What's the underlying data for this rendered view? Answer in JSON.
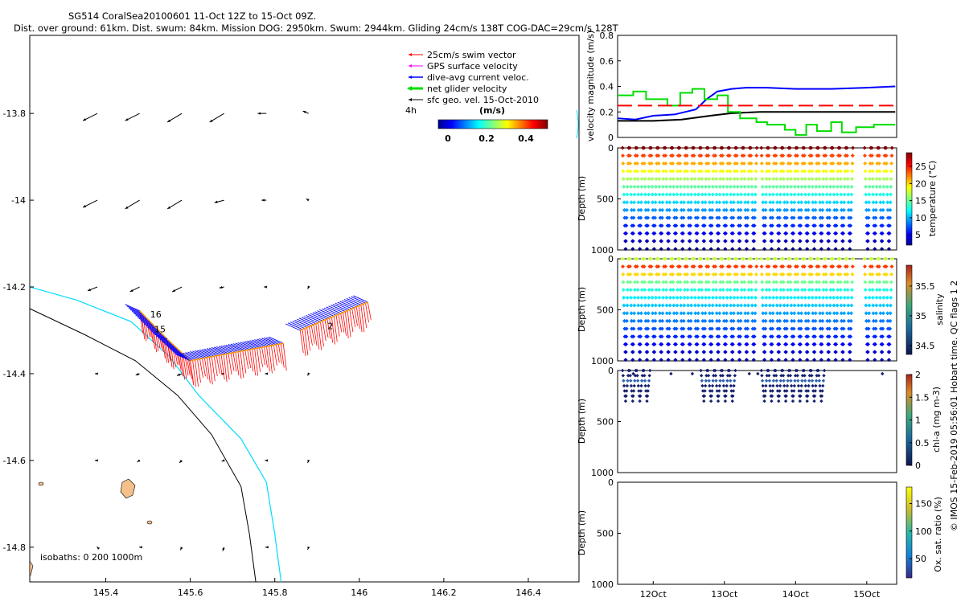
{
  "header": {
    "line1": "SG514 CoralSea20100601 11-Oct 12Z to 15-Oct 09Z.",
    "line2": "Dist. over ground: 61km. Dist. swum: 84km. Mission DOG: 2950km. Swum: 2944km. Gliding 24cm/s 138T COG-DAC=29cm/s 128T"
  },
  "side_note": "© IMOS 15-Feb-2019 05:56:01 Hobart time. QC flags 1  2",
  "colors": {
    "swim": "#ff0000",
    "gps": "#ff00ff",
    "dac": "#0000ff",
    "net": "#00dd00",
    "geo": "#000000",
    "coast": "#00dcff",
    "isobath": "#000000",
    "island": "#f5c08a"
  },
  "chart_data": [
    {
      "type": "scatter",
      "name": "map",
      "xlabel": "",
      "ylabel": "",
      "xlim": [
        145.22,
        146.52
      ],
      "ylim": [
        -14.88,
        -13.62
      ],
      "xticks": [
        "145.4",
        "145.6",
        "145.8",
        "146",
        "146.2",
        "146.4"
      ],
      "xtick_values": [
        145.4,
        145.6,
        145.8,
        146.0,
        146.2,
        146.4
      ],
      "yticks": [
        "-13.8",
        "-14",
        "-14.2",
        "-14.4",
        "-14.6",
        "-14.8"
      ],
      "ytick_values": [
        -13.8,
        -14.0,
        -14.2,
        -14.4,
        -14.6,
        -14.8
      ],
      "legend": {
        "position": "top-right",
        "entries": [
          "25cm/s swim vector",
          "GPS surface velocity",
          "dive-avg current veloc.",
          "net glider velocity",
          "sfc geo. vel. 15-Oct-2010"
        ]
      },
      "colorbar": {
        "label": "(m/s)",
        "ticks": [
          "0",
          "0.2",
          "0.4"
        ],
        "range": [
          0,
          0.5
        ]
      },
      "time_label": "4h",
      "isobath_note": "isobaths: 0    200   1000m",
      "track_labels": [
        {
          "text": "16",
          "lon": 145.505,
          "lat": -14.27
        },
        {
          "text": "15",
          "lon": 145.515,
          "lat": -14.305
        },
        {
          "text": "2",
          "lon": 145.925,
          "lat": -14.297
        }
      ],
      "track_segments": [
        {
          "from": [
            145.48,
            -14.255
          ],
          "to": [
            145.545,
            -14.32
          ]
        },
        {
          "from": [
            145.545,
            -14.32
          ],
          "to": [
            145.6,
            -14.37
          ]
        },
        {
          "from": [
            145.6,
            -14.37
          ],
          "to": [
            145.82,
            -14.33
          ]
        },
        {
          "from": [
            145.86,
            -14.3
          ],
          "to": [
            146.02,
            -14.235
          ]
        }
      ],
      "geo_vectors": [
        {
          "lon": 145.38,
          "lat": -13.8,
          "u": -0.3,
          "v": -0.15
        },
        {
          "lon": 145.48,
          "lat": -13.8,
          "u": -0.3,
          "v": -0.15
        },
        {
          "lon": 145.58,
          "lat": -13.8,
          "u": -0.3,
          "v": -0.18
        },
        {
          "lon": 145.68,
          "lat": -13.8,
          "u": -0.3,
          "v": -0.18
        },
        {
          "lon": 145.78,
          "lat": -13.8,
          "u": -0.18,
          "v": 0.0
        },
        {
          "lon": 145.88,
          "lat": -13.8,
          "u": -0.12,
          "v": 0.05
        },
        {
          "lon": 145.38,
          "lat": -14.0,
          "u": -0.3,
          "v": -0.15
        },
        {
          "lon": 145.48,
          "lat": -14.0,
          "u": -0.3,
          "v": -0.18
        },
        {
          "lon": 145.58,
          "lat": -14.0,
          "u": -0.3,
          "v": -0.18
        },
        {
          "lon": 145.68,
          "lat": -14.0,
          "u": -0.2,
          "v": -0.05
        },
        {
          "lon": 145.78,
          "lat": -14.0,
          "u": -0.1,
          "v": 0.0
        },
        {
          "lon": 145.88,
          "lat": -14.0,
          "u": -0.05,
          "v": 0.03
        },
        {
          "lon": 145.38,
          "lat": -14.2,
          "u": -0.2,
          "v": -0.08
        },
        {
          "lon": 145.48,
          "lat": -14.2,
          "u": -0.2,
          "v": -0.1
        },
        {
          "lon": 145.58,
          "lat": -14.2,
          "u": -0.2,
          "v": -0.1
        },
        {
          "lon": 145.68,
          "lat": -14.2,
          "u": -0.1,
          "v": -0.02
        },
        {
          "lon": 145.78,
          "lat": -14.2,
          "u": -0.05,
          "v": 0.0
        },
        {
          "lon": 145.88,
          "lat": -14.2,
          "u": -0.02,
          "v": -0.04
        },
        {
          "lon": 145.38,
          "lat": -14.4,
          "u": -0.05,
          "v": 0.0
        },
        {
          "lon": 145.48,
          "lat": -14.4,
          "u": -0.08,
          "v": -0.03
        },
        {
          "lon": 145.58,
          "lat": -14.4,
          "u": -0.1,
          "v": -0.04
        },
        {
          "lon": 145.68,
          "lat": -14.4,
          "u": -0.06,
          "v": 0.0
        },
        {
          "lon": 145.78,
          "lat": -14.4,
          "u": -0.03,
          "v": 0.0
        },
        {
          "lon": 145.88,
          "lat": -14.4,
          "u": -0.02,
          "v": -0.04
        },
        {
          "lon": 145.38,
          "lat": -14.6,
          "u": -0.05,
          "v": 0.0
        },
        {
          "lon": 145.48,
          "lat": -14.6,
          "u": -0.05,
          "v": -0.03
        },
        {
          "lon": 145.58,
          "lat": -14.6,
          "u": -0.05,
          "v": -0.05
        },
        {
          "lon": 145.68,
          "lat": -14.6,
          "u": -0.05,
          "v": -0.02
        },
        {
          "lon": 145.78,
          "lat": -14.6,
          "u": -0.03,
          "v": 0.0
        },
        {
          "lon": 145.88,
          "lat": -14.6,
          "u": -0.02,
          "v": -0.05
        },
        {
          "lon": 145.38,
          "lat": -14.8,
          "u": -0.01,
          "v": 0.01
        },
        {
          "lon": 145.48,
          "lat": -14.8,
          "u": -0.01,
          "v": 0.0
        },
        {
          "lon": 145.58,
          "lat": -14.8,
          "u": -0.03,
          "v": -0.06
        },
        {
          "lon": 145.68,
          "lat": -14.8,
          "u": -0.03,
          "v": -0.08
        },
        {
          "lon": 145.78,
          "lat": -14.8,
          "u": -0.02,
          "v": 0.0
        },
        {
          "lon": 145.88,
          "lat": -14.8,
          "u": -0.02,
          "v": -0.05
        }
      ],
      "coast_line": [
        [
          145.22,
          -14.2
        ],
        [
          145.33,
          -14.23
        ],
        [
          145.46,
          -14.28
        ],
        [
          145.55,
          -14.36
        ],
        [
          145.62,
          -14.45
        ],
        [
          145.72,
          -14.55
        ],
        [
          145.78,
          -14.65
        ],
        [
          145.8,
          -14.77
        ],
        [
          145.815,
          -14.88
        ]
      ],
      "isobath_line": [
        [
          145.22,
          -14.25
        ],
        [
          145.35,
          -14.31
        ],
        [
          145.47,
          -14.37
        ],
        [
          145.57,
          -14.45
        ],
        [
          145.65,
          -14.54
        ],
        [
          145.72,
          -14.66
        ],
        [
          145.74,
          -14.77
        ],
        [
          145.755,
          -14.88
        ]
      ]
    },
    {
      "type": "line",
      "name": "velocity",
      "ylabel": "velocity magnitude (m/s)",
      "ylim": [
        0,
        0.8
      ],
      "yticks": [
        "0",
        "0.2",
        "0.4",
        "0.6",
        "0.8"
      ],
      "xlim": [
        11.5,
        15.42
      ],
      "series": [
        {
          "color": "#0000ff",
          "x": [
            11.5,
            11.75,
            12.0,
            12.3,
            12.6,
            12.75,
            12.9,
            13.1,
            13.3,
            13.6,
            14.0,
            14.5,
            15.0,
            15.4
          ],
          "y": [
            0.15,
            0.14,
            0.17,
            0.18,
            0.22,
            0.3,
            0.36,
            0.38,
            0.39,
            0.39,
            0.38,
            0.38,
            0.39,
            0.4
          ]
        },
        {
          "color": "#000000",
          "x": [
            11.5,
            12.0,
            12.4,
            12.8,
            13.1,
            13.5,
            14.0,
            14.5,
            15.0,
            15.4
          ],
          "y": [
            0.13,
            0.13,
            0.14,
            0.17,
            0.19,
            0.2,
            0.2,
            0.2,
            0.2,
            0.2
          ]
        },
        {
          "color": "#00dd00",
          "step": true,
          "x": [
            11.5,
            11.72,
            11.9,
            12.2,
            12.38,
            12.55,
            12.72,
            12.9,
            13.05,
            13.22,
            13.45,
            13.6,
            13.85,
            14.0,
            14.15,
            14.3,
            14.5,
            14.65,
            14.85,
            15.1,
            15.4
          ],
          "y": [
            0.33,
            0.36,
            0.3,
            0.25,
            0.35,
            0.38,
            0.3,
            0.33,
            0.2,
            0.15,
            0.12,
            0.1,
            0.06,
            0.02,
            0.1,
            0.05,
            0.12,
            0.04,
            0.08,
            0.1,
            0.1
          ]
        },
        {
          "color": "#ff0000",
          "dashed": true,
          "x": [
            11.5,
            15.4
          ],
          "y": [
            0.25,
            0.25
          ]
        }
      ]
    },
    {
      "type": "scatter",
      "name": "temperature",
      "ylabel": "Depth (m)",
      "colorbar_label": "temperature (°C)",
      "clim": [
        2,
        29
      ],
      "colorbar_ticks": [
        "5",
        "10",
        "15",
        "20",
        "25"
      ],
      "ylim": [
        1000,
        0
      ],
      "yticks": [
        "0",
        "500",
        "1000"
      ],
      "xticks": [
        "12Oct",
        "13Oct",
        "14Oct",
        "15Oct"
      ],
      "xtick_values": [
        12,
        13,
        14,
        15
      ],
      "xlim": [
        11.5,
        15.42
      ]
    },
    {
      "type": "scatter",
      "name": "salinity",
      "ylabel": "Depth (m)",
      "colorbar_label": "salinity",
      "clim": [
        34.35,
        35.85
      ],
      "colorbar_ticks": [
        "34.5",
        "35",
        "35.5"
      ],
      "ylim": [
        1000,
        0
      ],
      "yticks": [
        "0",
        "500",
        "1000"
      ]
    },
    {
      "type": "scatter",
      "name": "chl-a",
      "ylabel": "Depth (m)",
      "colorbar_label": "chl-a (mg m-3)",
      "clim": [
        0,
        2
      ],
      "colorbar_ticks": [
        "0",
        "0.5",
        "1",
        "1.5",
        "2"
      ],
      "ylim": [
        1000,
        0
      ],
      "yticks": [
        "0",
        "500",
        "1000"
      ]
    },
    {
      "type": "scatter",
      "name": "oxygen",
      "ylabel": "Depth (m)",
      "colorbar_label": "Ox. sat. ratio (%)",
      "clim": [
        15,
        180
      ],
      "colorbar_ticks": [
        "50",
        "100",
        "150"
      ],
      "ylim": [
        1000,
        0
      ],
      "yticks": [
        "0",
        "500",
        "1000"
      ]
    }
  ],
  "dives": {
    "starts": [
      11.57,
      11.67,
      11.77,
      11.87,
      11.97,
      12.07,
      12.17,
      12.27,
      12.37,
      12.47,
      12.57,
      12.67,
      12.77,
      12.87,
      12.97,
      13.07,
      13.17,
      13.27,
      13.37,
      13.52,
      13.62,
      13.72,
      13.82,
      13.92,
      14.02,
      14.12,
      14.22,
      14.32,
      14.42,
      14.52,
      14.62,
      14.72,
      14.97,
      15.07,
      15.17,
      15.27
    ],
    "chl_dives": [
      0,
      1,
      2,
      3,
      11,
      12,
      13,
      14,
      15,
      19,
      20,
      21,
      22,
      23,
      24,
      25,
      26,
      27
    ]
  }
}
